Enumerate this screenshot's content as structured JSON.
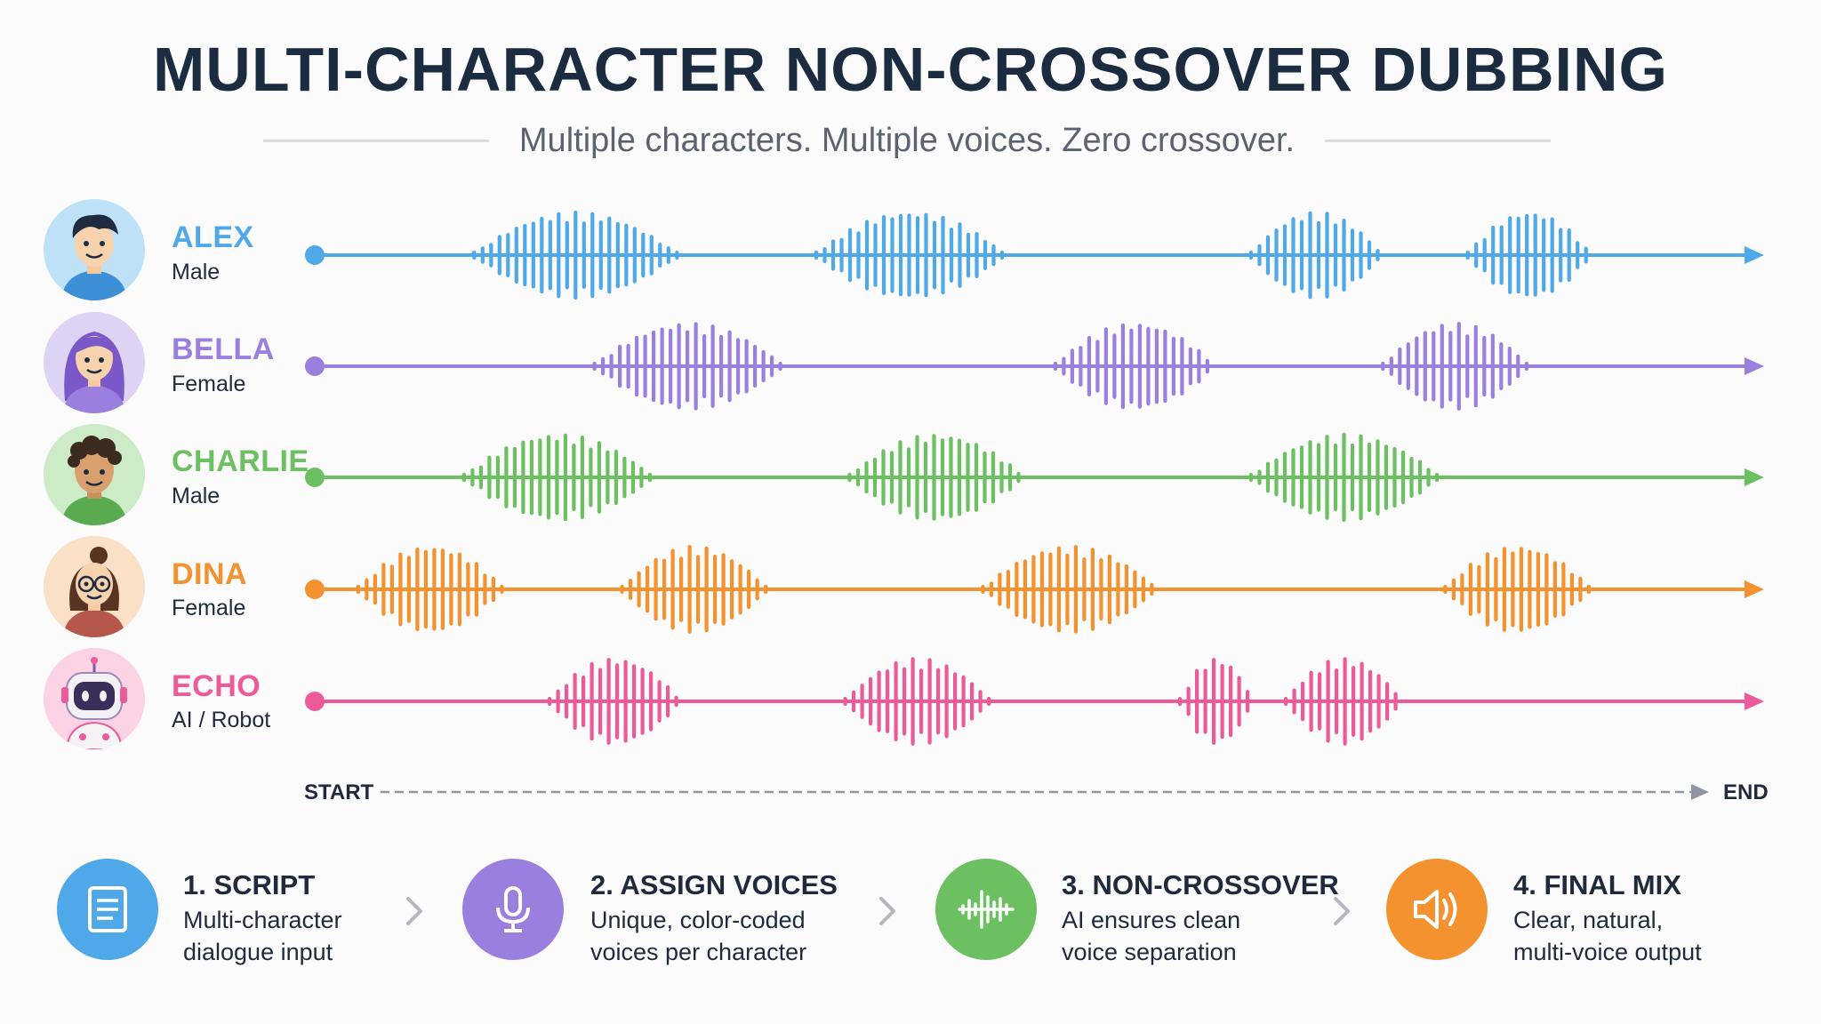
{
  "title": "MULTI-CHARACTER NON-CROSSOVER DUBBING",
  "subtitle": "Multiple characters. Multiple voices. Zero crossover.",
  "characters": [
    {
      "name": "ALEX",
      "role": "Male",
      "color": "#4fa8e8",
      "avatar_icon": "male-avatar-icon",
      "bursts": [
        {
          "c": 0.18,
          "w": 0.14
        },
        {
          "c": 0.411,
          "w": 0.13
        },
        {
          "c": 0.691,
          "w": 0.09
        },
        {
          "c": 0.838,
          "w": 0.085
        }
      ]
    },
    {
      "name": "BELLA",
      "role": "Female",
      "color": "#9b7fdf",
      "avatar_icon": "female-avatar-icon",
      "bursts": [
        {
          "c": 0.258,
          "w": 0.13
        },
        {
          "c": 0.566,
          "w": 0.11
        },
        {
          "c": 0.787,
          "w": 0.1
        }
      ]
    },
    {
      "name": "CHARLIE",
      "role": "Male",
      "color": "#6cc061",
      "avatar_icon": "male-avatar-icon",
      "bursts": [
        {
          "c": 0.168,
          "w": 0.13
        },
        {
          "c": 0.429,
          "w": 0.12
        },
        {
          "c": 0.711,
          "w": 0.13
        }
      ]
    },
    {
      "name": "DINA",
      "role": "Female",
      "color": "#f3922e",
      "avatar_icon": "female-glasses-avatar-icon",
      "bursts": [
        {
          "c": 0.08,
          "w": 0.1
        },
        {
          "c": 0.262,
          "w": 0.1
        },
        {
          "c": 0.521,
          "w": 0.12
        },
        {
          "c": 0.83,
          "w": 0.1
        }
      ]
    },
    {
      "name": "ECHO",
      "role": "AI / Robot",
      "color": "#ec5a9a",
      "avatar_icon": "robot-avatar-icon",
      "bursts": [
        {
          "c": 0.207,
          "w": 0.09
        },
        {
          "c": 0.416,
          "w": 0.1
        },
        {
          "c": 0.622,
          "w": 0.05
        },
        {
          "c": 0.71,
          "w": 0.08
        }
      ]
    }
  ],
  "timeline": {
    "start": "START",
    "end": "END"
  },
  "steps": [
    {
      "title": "1. SCRIPT",
      "desc": [
        "Multi-character",
        "dialogue input"
      ],
      "color": "#4fa8e8",
      "icon": "document-icon"
    },
    {
      "title": "2. ASSIGN VOICES",
      "desc": [
        "Unique, color-coded",
        "voices per character"
      ],
      "color": "#9b7fdf",
      "icon": "microphone-icon"
    },
    {
      "title": "3. NON-CROSSOVER",
      "desc": [
        "AI ensures clean",
        "voice separation"
      ],
      "color": "#6cc061",
      "icon": "waveform-icon"
    },
    {
      "title": "4. FINAL MIX",
      "desc": [
        "Clear, natural,",
        "multi-voice output"
      ],
      "color": "#f3922e",
      "icon": "speaker-icon"
    }
  ]
}
